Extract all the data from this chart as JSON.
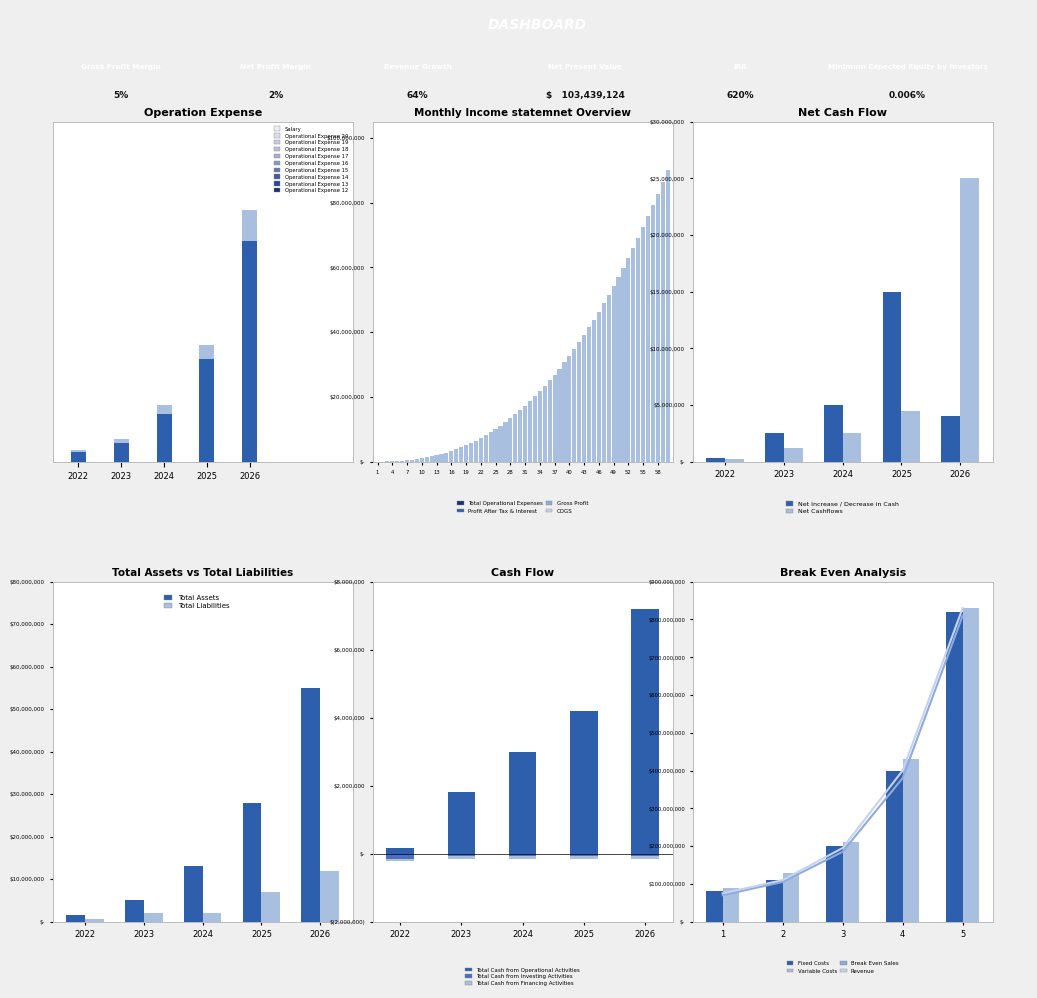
{
  "title": "DASHBOARD",
  "title_bg": "#0D1F5C",
  "title_color": "#FFFFFF",
  "kpi_items": [
    {
      "label": "Gross Profit Margin",
      "value": "5%",
      "has_dollar": false
    },
    {
      "label": "Net Profit Margin",
      "value": "2%",
      "has_dollar": false
    },
    {
      "label": "Revenue Growth",
      "value": "64%",
      "has_dollar": false
    },
    {
      "label": "Net Present Value",
      "value": "103,439,124",
      "has_dollar": true
    },
    {
      "label": "IRR",
      "value": "620%",
      "has_dollar": false
    },
    {
      "label": "Minimum Expected Equity by Investors",
      "value": "0.006%",
      "has_dollar": false
    }
  ],
  "kpi_bg": "#1A3070",
  "kpi_val_bg": "#C8C8C8",
  "op_expense": {
    "title": "Operation Expense",
    "years": [
      "2022",
      "2023",
      "2024",
      "2025",
      "2026"
    ],
    "base_vals": [
      600000,
      1200000,
      3000000,
      6500000,
      14000000
    ],
    "top_vals": [
      150000,
      250000,
      600000,
      900000,
      2000000
    ],
    "bar_color": "#2E5FAC",
    "top_color": "#A8BFDF",
    "legend": [
      "Salary",
      "Operational Expense 20",
      "Operational Expense 19",
      "Operational Expense 18",
      "Operational Expense 17",
      "Operational Expense 16",
      "Operational Expense 15",
      "Operational Expense 14",
      "Operational Expense 13",
      "Operational Expense 12"
    ],
    "legend_colors": [
      "#E8ECF7",
      "#D8DEEF",
      "#C8CEE7",
      "#B8BEDF",
      "#A8AECF",
      "#8898BF",
      "#6878AF",
      "#4858A0",
      "#2848A0",
      "#1A3070"
    ]
  },
  "monthly_income": {
    "title": "Monthly Income statemnet Overview",
    "n_bars": 60,
    "bar_color": "#A8BFDF",
    "ymax": 100000000,
    "yticks": [
      0,
      20000000,
      40000000,
      60000000,
      80000000,
      100000000
    ],
    "ytick_labels": [
      "$-",
      "$20,000,000",
      "$40,000,000",
      "$60,000,000",
      "$80,000,000",
      "$100,000,000"
    ],
    "xtick_vals": [
      1,
      4,
      7,
      10,
      13,
      16,
      19,
      22,
      25,
      28,
      31,
      34,
      37,
      40,
      43,
      46,
      49,
      52,
      55,
      58
    ],
    "legend": [
      "Total Operational Expenses",
      "Profit After Tax & Interest",
      "Gross Profit",
      "COGS"
    ],
    "legend_colors": [
      "#1A3070",
      "#2E5FAC",
      "#8FAADC",
      "#C5D3F0"
    ]
  },
  "net_cash_flow": {
    "title": "Net Cash Flow",
    "years": [
      "2022",
      "2023",
      "2024",
      "2025",
      "2026"
    ],
    "bar1": [
      300000,
      2500000,
      5000000,
      15000000,
      4000000
    ],
    "bar2": [
      200000,
      1200000,
      2500000,
      4500000,
      25000000
    ],
    "bar1_color": "#2E5FAC",
    "bar2_color": "#A8BFDF",
    "ymax": 30000000,
    "yticks": [
      0,
      5000000,
      10000000,
      15000000,
      20000000,
      25000000,
      30000000
    ],
    "ytick_labels": [
      "$-",
      "$5,000,000",
      "$10,000,000",
      "$15,000,000",
      "$20,000,000",
      "$25,000,000",
      "$30,000,000"
    ],
    "legend": [
      "Net Increase / Decrease in Cash",
      "Net Cashflows"
    ]
  },
  "assets_liabilities": {
    "title": "Total Assets vs Total Liabilities",
    "years": [
      "2022",
      "2023",
      "2024",
      "2025",
      "2026"
    ],
    "assets": [
      1500000,
      5000000,
      13000000,
      28000000,
      55000000
    ],
    "liabilities": [
      700000,
      2000000,
      2000000,
      7000000,
      12000000
    ],
    "asset_color": "#2E5FAC",
    "liab_color": "#A8BFDF",
    "ymax": 80000000,
    "yticks": [
      0,
      10000000,
      20000000,
      30000000,
      40000000,
      50000000,
      60000000,
      70000000,
      80000000
    ],
    "ytick_labels": [
      "$-",
      "$10,000,000",
      "$20,000,000",
      "$30,000,000",
      "$40,000,000",
      "$50,000,000",
      "$60,000,000",
      "$70,000,000",
      "$80,000,000"
    ],
    "legend": [
      "Total Assets",
      "Total Liabilities"
    ]
  },
  "cash_flow": {
    "title": "Cash Flow",
    "years": [
      "2022",
      "2023",
      "2024",
      "2025",
      "2026"
    ],
    "op": [
      180000,
      1800000,
      3000000,
      4200000,
      7200000
    ],
    "inv": [
      -150000,
      -80000,
      -80000,
      -80000,
      -80000
    ],
    "fin": [
      -80000,
      -80000,
      -80000,
      -80000,
      -80000
    ],
    "op_color": "#2E5FAC",
    "inv_color": "#4A70C0",
    "fin_color": "#A8BFDF",
    "ymax": 8000000,
    "ymin": -2000000,
    "yticks": [
      -2000000,
      0,
      2000000,
      4000000,
      6000000,
      8000000
    ],
    "ytick_labels": [
      "$(2,000,000)",
      "$-",
      "$2,000,000",
      "$4,000,000",
      "$6,000,000",
      "$8,000,000"
    ],
    "legend": [
      "Total Cash from Operational Activities",
      "Total Cash from Investing Activities",
      "Total Cash from Financing Activities"
    ]
  },
  "break_even": {
    "title": "Break Even Analysis",
    "x": [
      1,
      2,
      3,
      4,
      5
    ],
    "fixed_costs": [
      80000000,
      110000000,
      200000000,
      400000000,
      820000000
    ],
    "variable_costs": [
      90000000,
      130000000,
      210000000,
      430000000,
      830000000
    ],
    "break_even_sales": [
      70000000,
      105000000,
      185000000,
      380000000,
      810000000
    ],
    "revenue": [
      75000000,
      110000000,
      195000000,
      400000000,
      830000000
    ],
    "fc_color": "#2E5FAC",
    "vc_color": "#A8BFDF",
    "be_color": "#8FAADC",
    "rev_color": "#C5D3F0",
    "ymax": 900000000,
    "yticks": [
      0,
      100000000,
      200000000,
      300000000,
      400000000,
      500000000,
      600000000,
      700000000,
      800000000,
      900000000
    ],
    "ytick_labels": [
      "$-",
      "$100,000,000",
      "$200,000,000",
      "$300,000,000",
      "$400,000,000",
      "$500,000,000",
      "$600,000,000",
      "$700,000,000",
      "$800,000,000",
      "$900,000,000"
    ],
    "legend": [
      "Fixed Costs",
      "Variable Costs",
      "Break Even Sales",
      "Revenue"
    ]
  },
  "panel_bg": "#FFFFFF",
  "panel_border": "#CCCCCC",
  "bg_color": "#EFEFEF"
}
